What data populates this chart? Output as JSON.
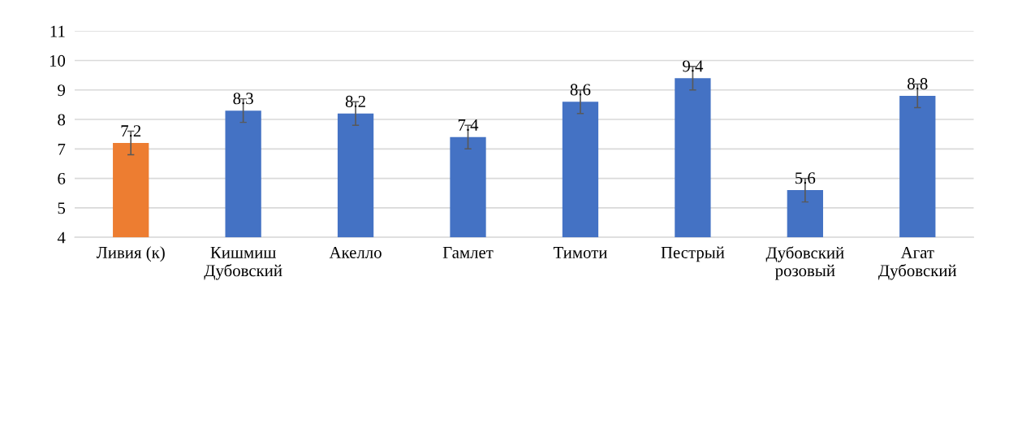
{
  "chart_data": {
    "type": "bar",
    "categories": [
      "Ливия (к)",
      "Кишмиш\nДубовский",
      "Акелло",
      "Гамлет",
      "Тимоти",
      "Пестрый",
      "Дубовский\nрозовый",
      "Агат\nДубовский"
    ],
    "values": [
      7.2,
      8.3,
      8.2,
      7.4,
      8.6,
      9.4,
      5.6,
      8.8
    ],
    "errors": [
      0.4,
      0.4,
      0.4,
      0.4,
      0.4,
      0.4,
      0.4,
      0.4
    ],
    "colors": [
      "#ed7d31",
      "#4472c4",
      "#4472c4",
      "#4472c4",
      "#4472c4",
      "#4472c4",
      "#4472c4",
      "#4472c4"
    ],
    "ylim": [
      4,
      11
    ],
    "yticks": [
      4,
      5,
      6,
      7,
      8,
      9,
      10,
      11
    ],
    "grid": "y",
    "data_labels": true
  }
}
